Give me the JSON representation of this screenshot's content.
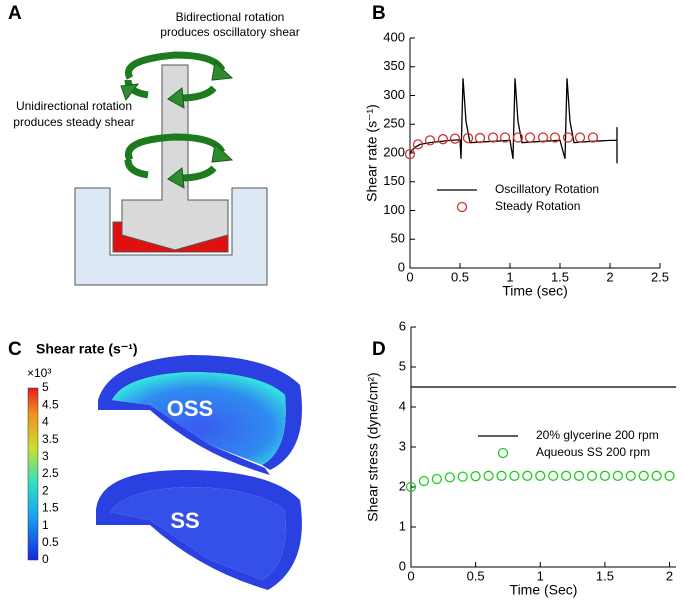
{
  "panels": {
    "a": {
      "letter": "A",
      "text_top_1": "Bidirectional rotation",
      "text_top_2": "produces oscillatory shear",
      "text_mid_1": "Unidirectional rotation",
      "text_mid_2": "produces steady shear"
    },
    "c": {
      "letter": "C",
      "title": "Shear rate (s⁻¹)",
      "multiplier": "×10³",
      "ticks": [
        "0",
        "0.5",
        "1",
        "1.5",
        "2",
        "2.5",
        "3",
        "3.5",
        "4",
        "4.5",
        "5"
      ],
      "label_top": "OSS",
      "label_bottom": "SS"
    }
  },
  "chart_data": [
    {
      "letter": "B",
      "type": "line",
      "x_label": "Time (sec)",
      "y_label": "Shear rate (s⁻¹)",
      "xlim": [
        0,
        2.5
      ],
      "ylim": [
        0,
        400
      ],
      "xticks": [
        0,
        0.5,
        1,
        1.5,
        2,
        2.5
      ],
      "yticks": [
        0,
        50,
        100,
        150,
        200,
        250,
        300,
        350,
        400
      ],
      "series": [
        {
          "name": "Oscillatory Rotation",
          "color": "#000000",
          "style": "line",
          "x": [
            0,
            0.05,
            0.1,
            0.2,
            0.3,
            0.4,
            0.5,
            0.51,
            0.53,
            0.56,
            0.6,
            0.7,
            0.8,
            0.9,
            1.0,
            1.03,
            1.05,
            1.08,
            1.12,
            1.2,
            1.3,
            1.4,
            1.5,
            1.55,
            1.57,
            1.6,
            1.64,
            1.7,
            1.8,
            1.9,
            2.0,
            2.07,
            2.07,
            2.07
          ],
          "values": [
            200,
            210,
            215,
            218,
            220,
            222,
            223,
            190,
            330,
            255,
            218,
            219,
            220,
            221,
            222,
            190,
            330,
            255,
            218,
            219,
            220,
            221,
            222,
            190,
            330,
            255,
            218,
            219,
            220,
            221,
            222,
            222,
            245,
            182
          ]
        },
        {
          "name": "Steady Rotation",
          "color": "#d0312d",
          "style": "markers",
          "x": [
            0,
            0.08,
            0.2,
            0.33,
            0.45,
            0.58,
            0.7,
            0.83,
            0.95,
            1.08,
            1.2,
            1.33,
            1.45,
            1.58,
            1.7,
            1.83
          ],
          "values": [
            198,
            215,
            222,
            224,
            225,
            226,
            226,
            227,
            227,
            227,
            227,
            227,
            227,
            227,
            227,
            227
          ]
        }
      ]
    },
    {
      "letter": "D",
      "type": "line",
      "x_label": "Time (Sec)",
      "y_label": "Shear stress (dyne/cm²)",
      "xlim": [
        0,
        2.05
      ],
      "ylim": [
        0,
        6
      ],
      "xticks": [
        0,
        0.5,
        1,
        1.5,
        2
      ],
      "yticks": [
        0,
        1,
        2,
        3,
        4,
        5,
        6
      ],
      "series": [
        {
          "name": "20% glycerine 200 rpm",
          "color": "#000000",
          "style": "line",
          "x": [
            0,
            2.05
          ],
          "values": [
            4.5,
            4.5
          ]
        },
        {
          "name": "Aqueous SS 200 rpm",
          "color": "#22cc22",
          "style": "markers",
          "x": [
            0,
            0.1,
            0.2,
            0.3,
            0.4,
            0.5,
            0.6,
            0.7,
            0.8,
            0.9,
            1.0,
            1.1,
            1.2,
            1.3,
            1.4,
            1.5,
            1.6,
            1.7,
            1.8,
            1.9,
            2.0
          ],
          "values": [
            2.0,
            2.15,
            2.2,
            2.24,
            2.26,
            2.27,
            2.28,
            2.28,
            2.28,
            2.28,
            2.28,
            2.28,
            2.28,
            2.28,
            2.28,
            2.28,
            2.28,
            2.28,
            2.28,
            2.28,
            2.28
          ]
        }
      ]
    }
  ]
}
